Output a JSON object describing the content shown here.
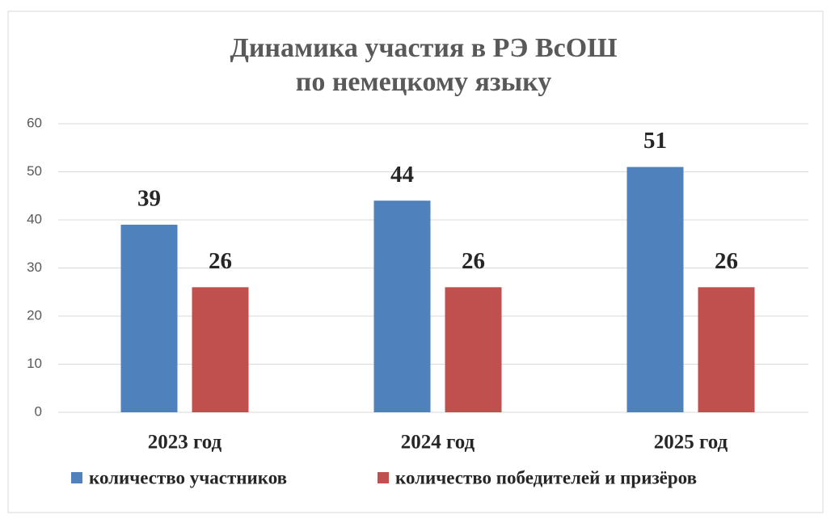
{
  "chart_data": {
    "type": "bar",
    "title": [
      "Динамика участия в РЭ ВсОШ",
      "по немецкому языку"
    ],
    "categories": [
      "2023 год",
      "2024 год",
      "2025 год"
    ],
    "series": [
      {
        "name": "количество участников",
        "color": "#4f81bd",
        "values": [
          39,
          44,
          51
        ]
      },
      {
        "name": "количество победителей и призёров",
        "color": "#c0504d",
        "values": [
          26,
          26,
          26
        ]
      }
    ],
    "ylim": [
      0,
      60
    ],
    "yticks": [
      0,
      10,
      20,
      30,
      40,
      50,
      60
    ],
    "grid": true,
    "legend": "bottom"
  }
}
